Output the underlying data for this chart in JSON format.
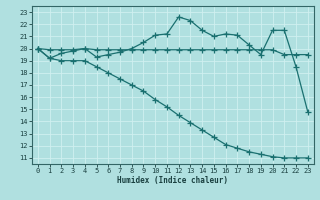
{
  "xlabel": "Humidex (Indice chaleur)",
  "x_ticks": [
    0,
    1,
    2,
    3,
    4,
    5,
    6,
    7,
    8,
    9,
    10,
    11,
    12,
    13,
    14,
    15,
    16,
    17,
    18,
    19,
    20,
    21,
    22,
    23
  ],
  "y_ticks": [
    11,
    12,
    13,
    14,
    15,
    16,
    17,
    18,
    19,
    20,
    21,
    22,
    23
  ],
  "xlim": [
    -0.5,
    23.5
  ],
  "ylim": [
    10.5,
    23.5
  ],
  "bg_color": "#b0e0e0",
  "grid_color": "#d0f0f0",
  "line_color": "#1a7070",
  "flat_x": [
    0,
    1,
    2,
    3,
    4,
    5,
    6,
    7,
    8,
    9,
    10,
    11,
    12,
    13,
    14,
    15,
    16,
    17,
    18,
    19,
    20,
    21,
    22,
    23
  ],
  "flat_y": [
    20.0,
    19.9,
    19.9,
    19.9,
    20.0,
    19.9,
    19.9,
    19.9,
    19.9,
    19.9,
    19.9,
    19.9,
    19.9,
    19.9,
    19.9,
    19.9,
    19.9,
    19.9,
    19.9,
    19.9,
    19.9,
    19.5,
    19.5,
    19.5
  ],
  "peak_x": [
    0,
    1,
    2,
    3,
    4,
    5,
    6,
    7,
    8,
    9,
    10,
    11,
    12,
    13,
    14,
    15,
    16,
    17,
    18,
    19,
    20,
    21,
    22,
    23
  ],
  "peak_y": [
    20.0,
    19.2,
    19.6,
    19.8,
    20.0,
    19.3,
    19.5,
    19.7,
    20.0,
    20.5,
    21.1,
    21.2,
    22.6,
    22.3,
    21.5,
    21.0,
    21.2,
    21.1,
    20.3,
    19.5,
    21.5,
    21.5,
    18.5,
    14.8
  ],
  "diag_x": [
    0,
    1,
    2,
    3,
    4,
    5,
    6,
    7,
    8,
    9,
    10,
    11,
    12,
    13,
    14,
    15,
    16,
    17,
    18,
    19,
    20,
    21,
    22,
    23
  ],
  "diag_y": [
    20.0,
    19.2,
    19.0,
    19.0,
    19.0,
    18.5,
    18.0,
    17.5,
    17.0,
    16.5,
    15.8,
    15.2,
    14.5,
    13.9,
    13.3,
    12.7,
    12.1,
    11.8,
    11.5,
    11.3,
    11.1,
    11.0,
    11.0,
    11.0
  ]
}
